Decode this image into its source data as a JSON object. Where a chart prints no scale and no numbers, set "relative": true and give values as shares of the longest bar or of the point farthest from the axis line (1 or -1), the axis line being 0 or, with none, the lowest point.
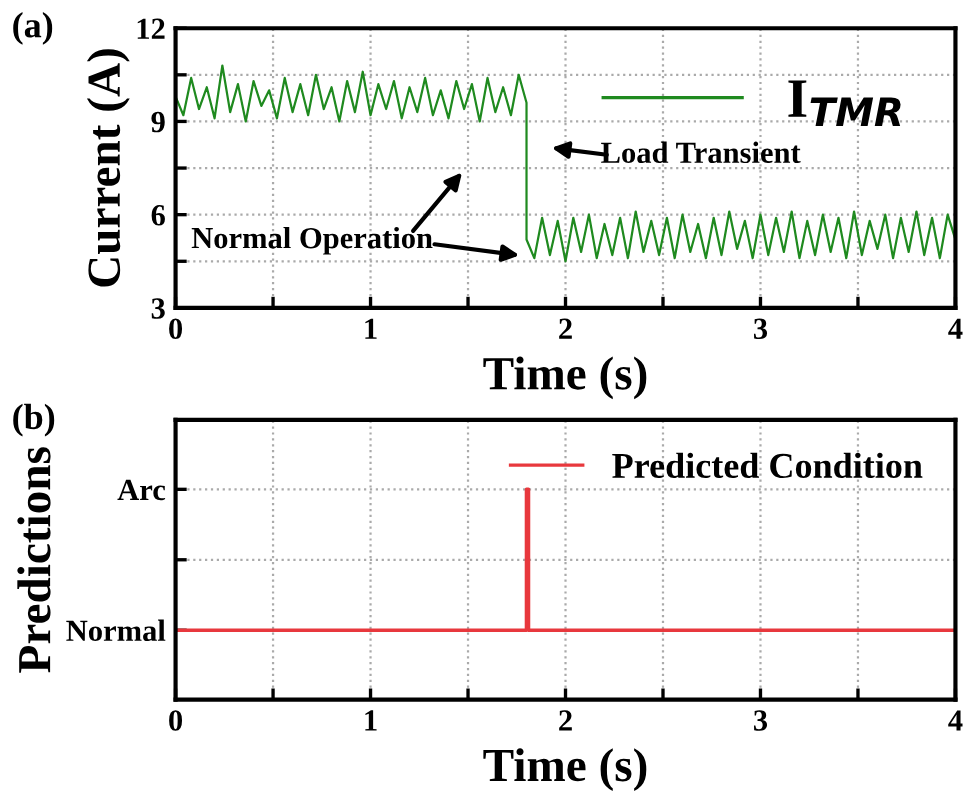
{
  "chart_data": [
    {
      "type": "line",
      "xlabel": "Time (s)",
      "ylabel": "Current (A)",
      "title": "(a)",
      "xlim": [
        0,
        4
      ],
      "xticks": [
        0,
        {
          "value": 0.5,
          "label": null
        },
        1,
        {
          "value": 1.5,
          "label": null
        },
        2,
        {
          "value": 2.5,
          "label": null
        },
        3,
        {
          "value": 3.5,
          "label": null
        },
        4
      ],
      "ylim": [
        3,
        12
      ],
      "yticks": [
        3,
        {
          "value": 4.5,
          "label": null
        },
        6,
        {
          "value": 7.5,
          "label": null
        },
        9,
        {
          "value": 10.5,
          "label": null
        },
        12
      ],
      "grid": true,
      "legend": "top right",
      "marker": "none",
      "line_style": "solid",
      "annotations": [
        "Normal Operation",
        "Load Transient"
      ],
      "series": [
        {
          "name": "I$_{TMR}$",
          "color": "#1f8a1f",
          "x": [
            0,
            0.04,
            0.08,
            0.12,
            0.16,
            0.2,
            0.24,
            0.28,
            0.32,
            0.36,
            0.4,
            0.44,
            0.48,
            0.52,
            0.56,
            0.6,
            0.64,
            0.68,
            0.72,
            0.76,
            0.8,
            0.84,
            0.88,
            0.92,
            0.96,
            1.0,
            1.04,
            1.08,
            1.12,
            1.16,
            1.2,
            1.24,
            1.28,
            1.32,
            1.36,
            1.4,
            1.44,
            1.48,
            1.52,
            1.56,
            1.6,
            1.64,
            1.68,
            1.72,
            1.76,
            1.8,
            1.8,
            1.84,
            1.88,
            1.92,
            1.96,
            2.0,
            2.04,
            2.08,
            2.12,
            2.16,
            2.2,
            2.24,
            2.28,
            2.32,
            2.36,
            2.4,
            2.44,
            2.48,
            2.52,
            2.56,
            2.6,
            2.64,
            2.68,
            2.72,
            2.76,
            2.8,
            2.84,
            2.88,
            2.92,
            2.96,
            3.0,
            3.04,
            3.08,
            3.12,
            3.16,
            3.2,
            3.24,
            3.28,
            3.32,
            3.36,
            3.4,
            3.44,
            3.48,
            3.52,
            3.56,
            3.6,
            3.64,
            3.68,
            3.72,
            3.76,
            3.8,
            3.84,
            3.88,
            3.92,
            3.96,
            4.0
          ],
          "values": [
            9.8,
            9.2,
            10.4,
            9.4,
            10.1,
            9.1,
            10.8,
            9.3,
            10.2,
            9.0,
            10.3,
            9.5,
            10.0,
            9.1,
            10.4,
            9.3,
            10.2,
            9.2,
            10.5,
            9.4,
            10.1,
            9.0,
            10.3,
            9.3,
            10.6,
            9.2,
            10.2,
            9.4,
            10.3,
            9.1,
            10.1,
            9.3,
            10.4,
            9.2,
            10.0,
            9.1,
            10.3,
            9.4,
            10.2,
            9.0,
            10.4,
            9.3,
            10.1,
            9.2,
            10.5,
            9.6,
            5.2,
            4.6,
            5.9,
            4.7,
            5.8,
            4.5,
            5.9,
            4.8,
            6.0,
            4.6,
            5.7,
            4.7,
            5.9,
            4.6,
            6.1,
            4.8,
            5.8,
            4.7,
            5.9,
            4.6,
            6.0,
            4.8,
            5.7,
            4.6,
            5.9,
            4.7,
            6.1,
            4.9,
            5.8,
            4.6,
            6.0,
            4.7,
            5.9,
            4.8,
            6.1,
            4.6,
            5.8,
            4.7,
            6.0,
            4.8,
            5.9,
            4.6,
            6.1,
            4.7,
            5.8,
            4.9,
            6.0,
            4.6,
            5.9,
            4.8,
            6.1,
            4.7,
            5.9,
            4.6,
            6.0,
            5.2
          ]
        }
      ]
    },
    {
      "type": "line",
      "xlabel": "Time (s)",
      "ylabel": "Predictions",
      "title": "(b)",
      "xlim": [
        0,
        4
      ],
      "xticks": [
        0,
        {
          "value": 0.5,
          "label": null
        },
        1,
        {
          "value": 1.5,
          "label": null
        },
        2,
        {
          "value": 2.5,
          "label": null
        },
        3,
        {
          "value": 3.5,
          "label": null
        },
        4
      ],
      "relative": true,
      "annotations": [
        "Normal",
        "Arc"
      ],
      "grid": true,
      "legend": "top right",
      "marker": "none",
      "line_style": "solid",
      "series": [
        {
          "name": "Predicted Condition",
          "color": "#e8383d",
          "x": [
            0,
            1.8,
            1.8,
            1.81,
            1.81,
            4
          ],
          "values": [
            0.33,
            0.33,
            1,
            1,
            0.33,
            0.33
          ]
        }
      ]
    }
  ]
}
